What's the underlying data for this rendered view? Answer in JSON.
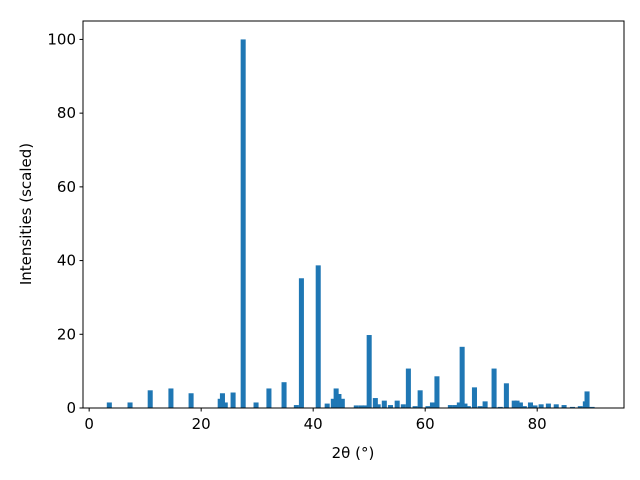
{
  "chart_data": {
    "type": "bar",
    "xlabel": "2θ (°)",
    "ylabel": "Intensities (scaled)",
    "color": "#1f77b4",
    "x": [
      3.6,
      7.3,
      10.9,
      14.6,
      18.2,
      23.4,
      23.8,
      24.3,
      25.7,
      27.5,
      29.8,
      32.1,
      34.8,
      37.0,
      37.9,
      40.9,
      42.5,
      43.6,
      44.1,
      44.6,
      45.2,
      47.7,
      48.6,
      49.3,
      50.0,
      51.1,
      51.6,
      52.7,
      53.8,
      55.0,
      56.1,
      57.0,
      58.2,
      59.1,
      60.5,
      61.3,
      62.1,
      64.5,
      65.4,
      66.1,
      66.6,
      67.1,
      67.7,
      68.8,
      69.8,
      70.7,
      72.3,
      73.4,
      74.5,
      75.9,
      76.4,
      77.0,
      77.7,
      78.8,
      79.6,
      80.7,
      82.0,
      83.4,
      84.8,
      86.3,
      87.7,
      88.6,
      88.9,
      89.8
    ],
    "values": [
      1.5,
      1.5,
      4.8,
      5.3,
      4.0,
      2.5,
      4.0,
      1.5,
      4.2,
      100,
      1.5,
      5.3,
      7.0,
      0.8,
      35.2,
      38.7,
      1.2,
      2.5,
      5.3,
      3.8,
      2.5,
      0.7,
      0.7,
      0.7,
      19.8,
      2.7,
      1.0,
      2.0,
      0.8,
      2.0,
      1.0,
      10.7,
      0.5,
      4.8,
      0.5,
      1.5,
      8.6,
      0.8,
      0.8,
      1.5,
      16.6,
      1.2,
      0.5,
      5.6,
      0.5,
      1.8,
      10.7,
      0.3,
      6.7,
      2.0,
      2.0,
      1.5,
      0.5,
      1.5,
      0.7,
      1.0,
      1.2,
      1.0,
      0.8,
      0.3,
      0.5,
      1.8,
      4.5,
      0.3
    ],
    "xlim": [
      -1.1,
      95.5
    ],
    "ylim": [
      0,
      105
    ],
    "xticks": [
      0,
      20,
      40,
      60,
      80
    ],
    "yticks": [
      0,
      20,
      40,
      60,
      80,
      100
    ]
  }
}
